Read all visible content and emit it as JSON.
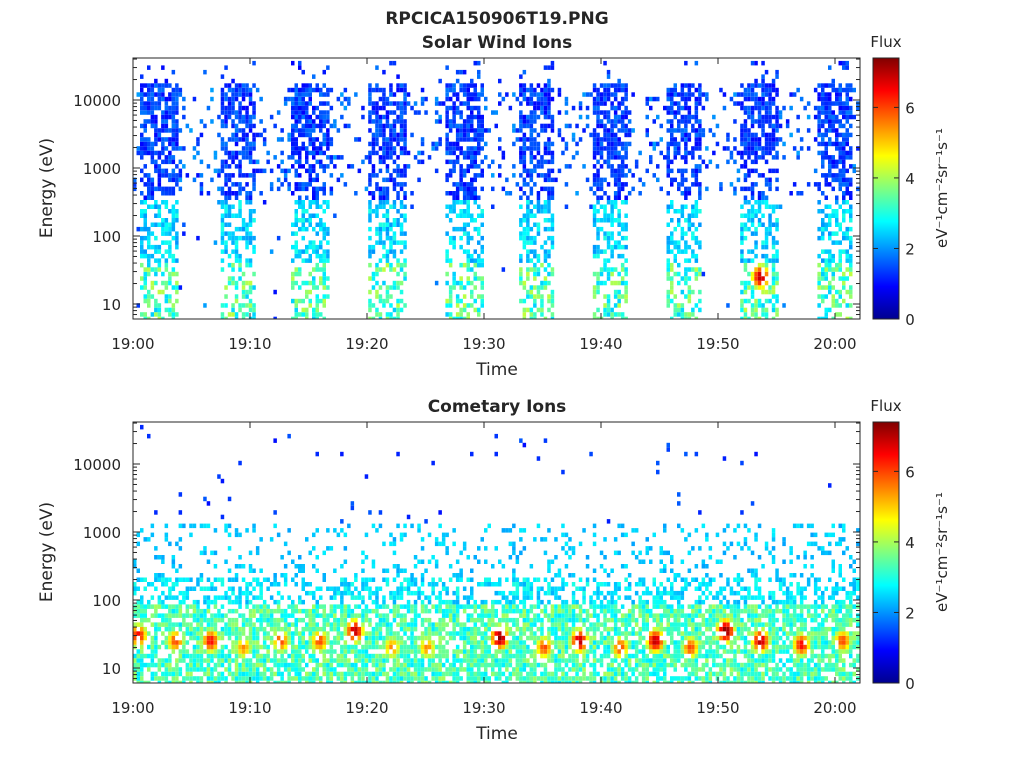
{
  "figure_title": "RPCICA150906T19.PNG",
  "chart_data": [
    {
      "type": "heatmap",
      "title": "Solar Wind Ions",
      "xlabel": "Time",
      "ylabel": "Energy (eV)",
      "x_ticks": [
        "19:00",
        "19:10",
        "19:20",
        "19:30",
        "19:40",
        "19:50",
        "20:00"
      ],
      "y_scale": "log",
      "y_ticks": [
        "10",
        "100",
        "1000",
        "10000"
      ],
      "ylim": [
        6,
        40000
      ],
      "colorbar": {
        "title": "Flux",
        "ticks": [
          "0",
          "2",
          "4",
          "6"
        ],
        "range": [
          0,
          7.4
        ],
        "label": "eV⁻¹cm⁻²sr⁻¹s⁻¹",
        "colormap": "jet"
      },
      "bursts_minutes": [
        [
          0.5,
          3.8
        ],
        [
          7.2,
          10.5
        ],
        [
          13.5,
          16.8
        ],
        [
          20.0,
          23.2
        ],
        [
          26.5,
          29.8
        ],
        [
          32.8,
          35.8
        ],
        [
          39.0,
          42.2
        ],
        [
          45.5,
          48.5
        ],
        [
          51.8,
          55.0
        ],
        [
          58.2,
          61.2
        ]
      ],
      "hot_spots": [
        {
          "minute": 53.5,
          "energy_eV": 25,
          "flux": 7.0
        }
      ]
    },
    {
      "type": "heatmap",
      "title": "Cometary Ions",
      "xlabel": "Time",
      "ylabel": "Energy (eV)",
      "x_ticks": [
        "19:00",
        "19:10",
        "19:20",
        "19:30",
        "19:40",
        "19:50",
        "20:00"
      ],
      "y_scale": "log",
      "y_ticks": [
        "10",
        "100",
        "1000",
        "10000"
      ],
      "ylim": [
        6,
        40000
      ],
      "colorbar": {
        "title": "Flux",
        "ticks": [
          "0",
          "2",
          "4",
          "6"
        ],
        "range": [
          0,
          7.4
        ],
        "label": "eV⁻¹cm⁻²sr⁻¹s⁻¹",
        "colormap": "jet"
      },
      "hot_spots": [
        {
          "minute": 0.3,
          "energy_eV": 30,
          "flux": 6.5
        },
        {
          "minute": 3.5,
          "energy_eV": 25,
          "flux": 6.0
        },
        {
          "minute": 6.5,
          "energy_eV": 25,
          "flux": 6.5
        },
        {
          "minute": 9.3,
          "energy_eV": 20,
          "flux": 5.5
        },
        {
          "minute": 12.5,
          "energy_eV": 25,
          "flux": 6.0
        },
        {
          "minute": 15.8,
          "energy_eV": 25,
          "flux": 6.0
        },
        {
          "minute": 18.8,
          "energy_eV": 35,
          "flux": 7.0
        },
        {
          "minute": 22.0,
          "energy_eV": 20,
          "flux": 5.5
        },
        {
          "minute": 25.0,
          "energy_eV": 20,
          "flux": 5.5
        },
        {
          "minute": 31.2,
          "energy_eV": 28,
          "flux": 7.3
        },
        {
          "minute": 35.0,
          "energy_eV": 20,
          "flux": 6.0
        },
        {
          "minute": 38.0,
          "energy_eV": 25,
          "flux": 7.0
        },
        {
          "minute": 41.5,
          "energy_eV": 20,
          "flux": 6.0
        },
        {
          "minute": 44.5,
          "energy_eV": 25,
          "flux": 7.0
        },
        {
          "minute": 47.5,
          "energy_eV": 20,
          "flux": 6.0
        },
        {
          "minute": 50.5,
          "energy_eV": 35,
          "flux": 7.4
        },
        {
          "minute": 53.5,
          "energy_eV": 25,
          "flux": 7.0
        },
        {
          "minute": 57.0,
          "energy_eV": 22,
          "flux": 6.5
        },
        {
          "minute": 60.5,
          "energy_eV": 25,
          "flux": 6.0
        }
      ]
    }
  ]
}
